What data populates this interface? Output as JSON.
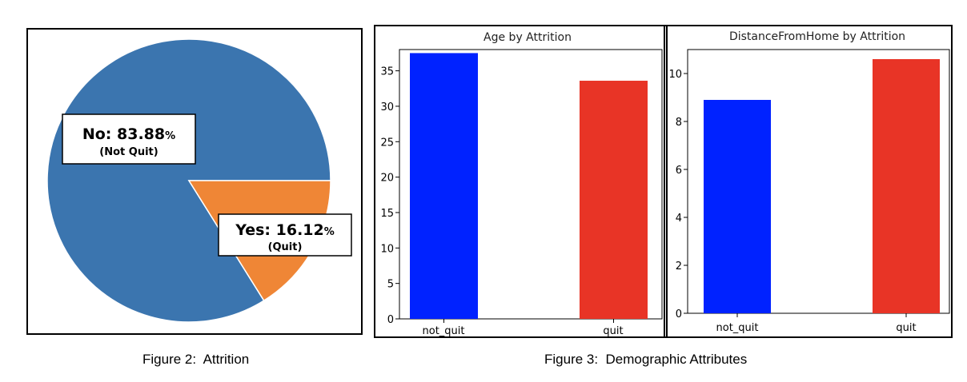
{
  "figure2": {
    "caption": "Figure 2:  Attrition",
    "chart_data": {
      "type": "pie",
      "labels": [
        "No",
        "Yes"
      ],
      "values": [
        83.88,
        16.12
      ],
      "colors": [
        "#3b75af",
        "#ef8636"
      ],
      "annotations": [
        {
          "main": "No: 83.88",
          "pct": "%",
          "sub": "(Not Quit)"
        },
        {
          "main": "Yes: 16.12",
          "pct": "%",
          "sub": "(Quit)"
        }
      ]
    }
  },
  "figure3": {
    "caption": "Figure 3:  Demographic Attributes",
    "charts": [
      {
        "type": "bar",
        "title": "Age by Attrition",
        "categories": [
          "not_quit",
          "quit"
        ],
        "values": [
          37.5,
          33.6
        ],
        "colors": [
          "#0022ff",
          "#e83426"
        ],
        "ylim": [
          0,
          38
        ],
        "yticks": [
          "0",
          "5",
          "10",
          "15",
          "20",
          "25",
          "30",
          "35"
        ]
      },
      {
        "type": "bar",
        "title": "DistanceFromHome by Attrition",
        "categories": [
          "not_quit",
          "quit"
        ],
        "values": [
          8.9,
          10.6
        ],
        "colors": [
          "#0022ff",
          "#e83426"
        ],
        "ylim": [
          0,
          11
        ],
        "yticks": [
          "0",
          "2",
          "4",
          "6",
          "8",
          "10"
        ]
      }
    ]
  }
}
